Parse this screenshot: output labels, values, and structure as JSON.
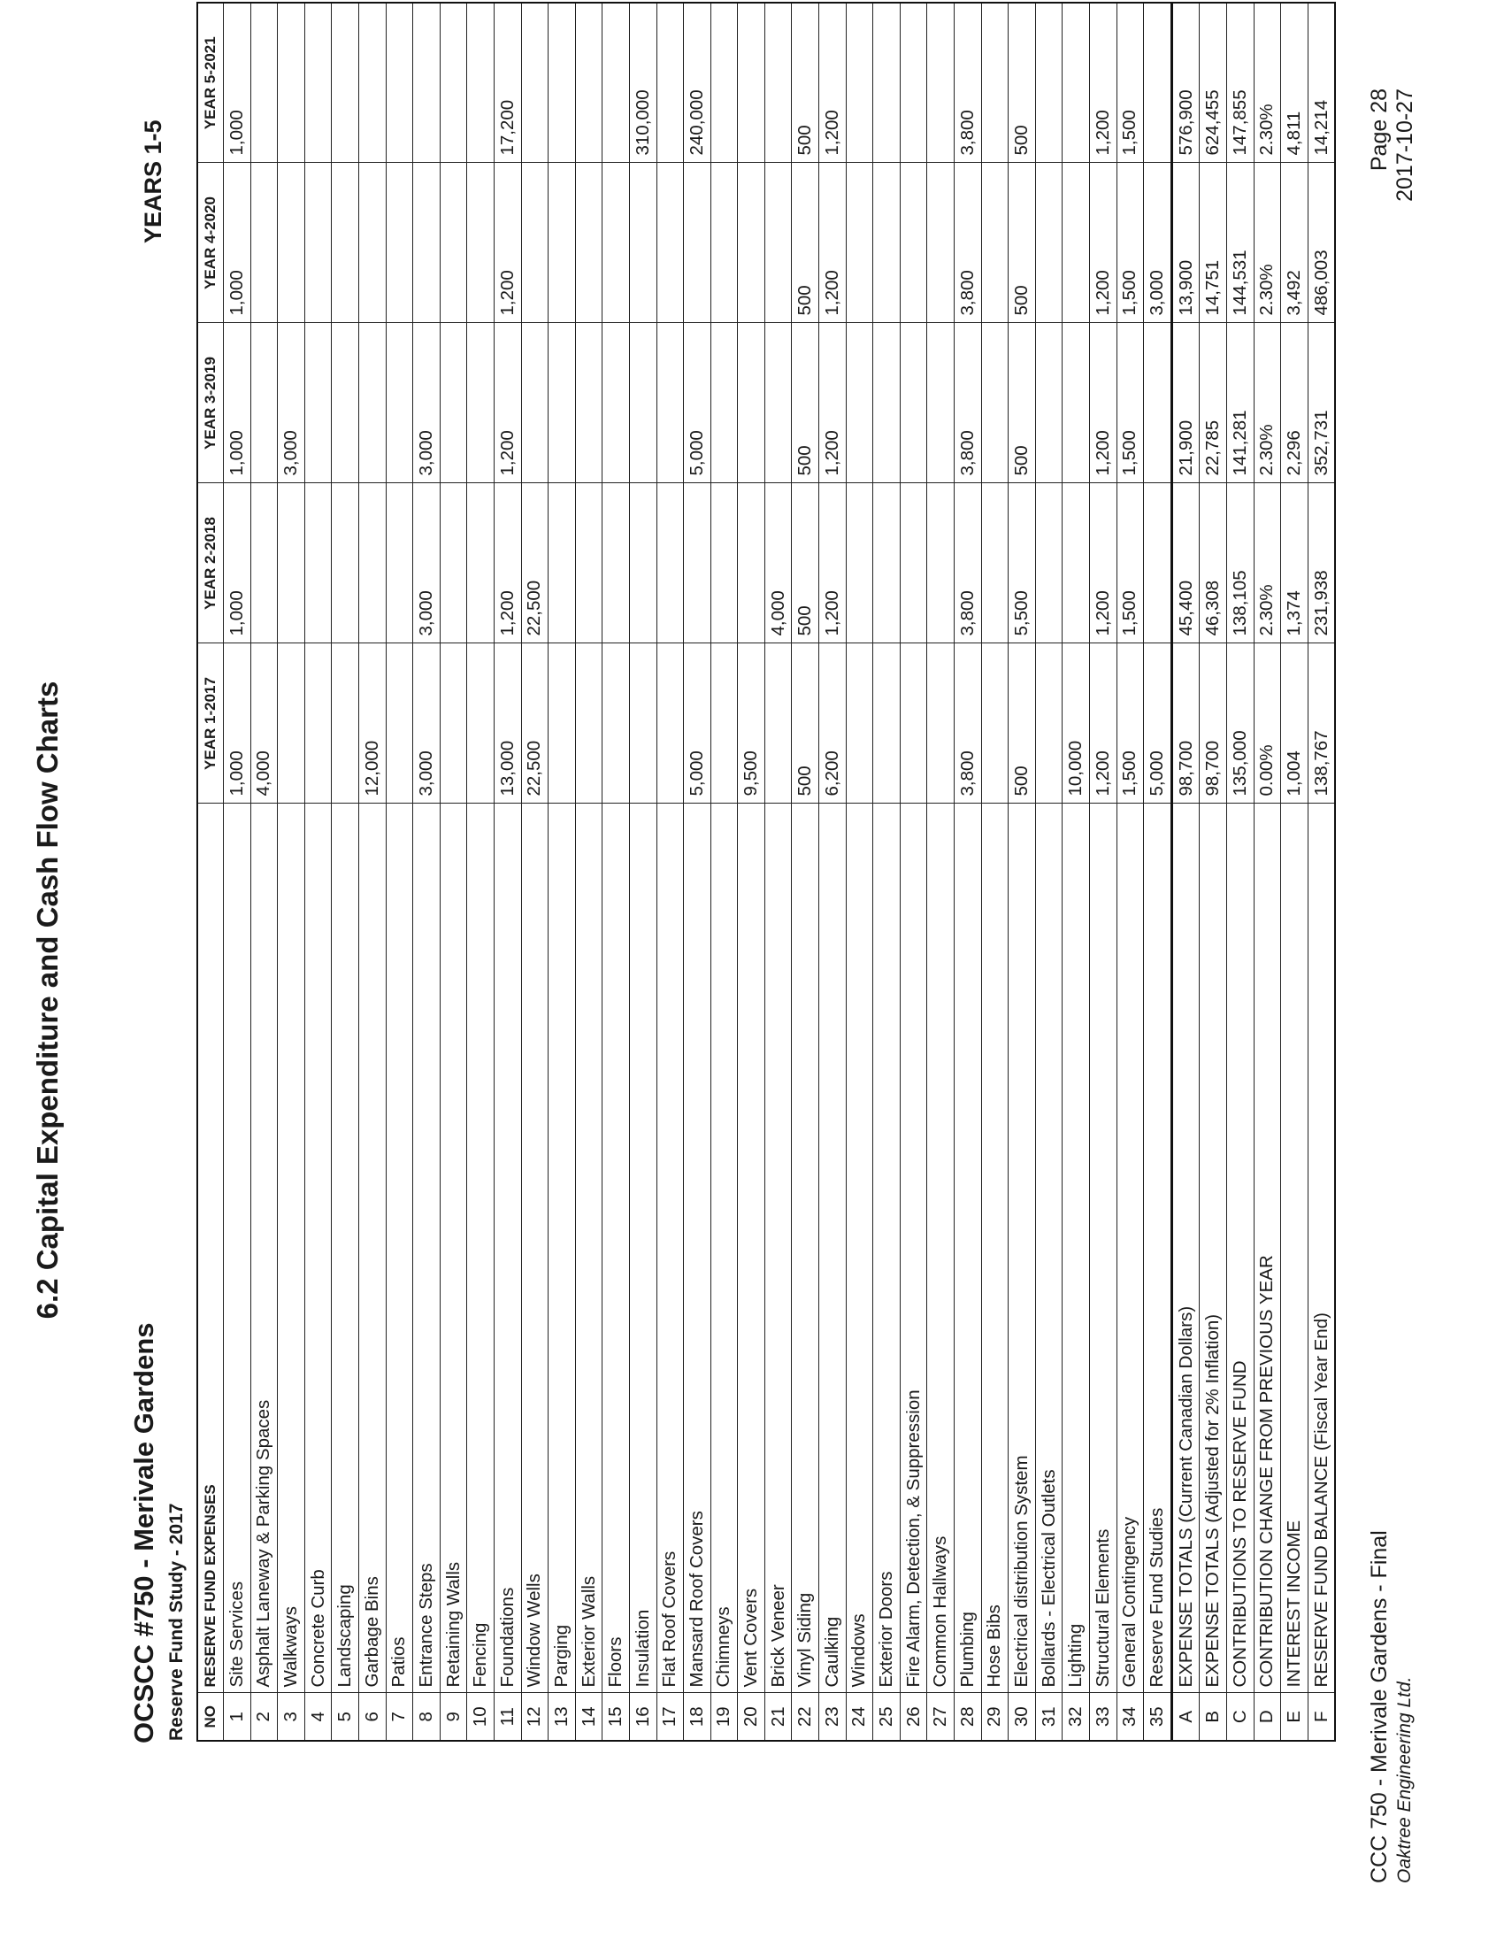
{
  "page_title": "6.2 Capital Expenditure and Cash Flow Charts",
  "org_title": "OCSCC #750 - Merivale Gardens",
  "study_title": "Reserve Fund Study - 2017",
  "years_label": "YEARS 1-5",
  "table": {
    "headers": {
      "no": "NO",
      "name": "RESERVE FUND EXPENSES",
      "years": [
        "YEAR 1-2017",
        "YEAR 2-2018",
        "YEAR 3-2019",
        "YEAR 4-2020",
        "YEAR 5-2021"
      ]
    },
    "rows": [
      {
        "no": "1",
        "name": "Site Services",
        "values": [
          "1,000",
          "1,000",
          "1,000",
          "1,000",
          "1,000"
        ]
      },
      {
        "no": "2",
        "name": "Asphalt Laneway & Parking Spaces",
        "values": [
          "4,000",
          "",
          "",
          "",
          ""
        ]
      },
      {
        "no": "3",
        "name": "Walkways",
        "values": [
          "",
          "",
          "3,000",
          "",
          ""
        ]
      },
      {
        "no": "4",
        "name": "Concrete Curb",
        "values": [
          "",
          "",
          "",
          "",
          ""
        ]
      },
      {
        "no": "5",
        "name": "Landscaping",
        "values": [
          "",
          "",
          "",
          "",
          ""
        ]
      },
      {
        "no": "6",
        "name": "Garbage Bins",
        "values": [
          "12,000",
          "",
          "",
          "",
          ""
        ]
      },
      {
        "no": "7",
        "name": "Patios",
        "values": [
          "",
          "",
          "",
          "",
          ""
        ]
      },
      {
        "no": "8",
        "name": "Entrance Steps",
        "values": [
          "3,000",
          "3,000",
          "3,000",
          "",
          ""
        ]
      },
      {
        "no": "9",
        "name": "Retaining Walls",
        "values": [
          "",
          "",
          "",
          "",
          ""
        ]
      },
      {
        "no": "10",
        "name": "Fencing",
        "values": [
          "",
          "",
          "",
          "",
          ""
        ]
      },
      {
        "no": "11",
        "name": "Foundations",
        "values": [
          "13,000",
          "1,200",
          "1,200",
          "1,200",
          "17,200"
        ]
      },
      {
        "no": "12",
        "name": "Window Wells",
        "values": [
          "22,500",
          "22,500",
          "",
          "",
          ""
        ]
      },
      {
        "no": "13",
        "name": "Parging",
        "values": [
          "",
          "",
          "",
          "",
          ""
        ]
      },
      {
        "no": "14",
        "name": "Exterior Walls",
        "values": [
          "",
          "",
          "",
          "",
          ""
        ]
      },
      {
        "no": "15",
        "name": "Floors",
        "values": [
          "",
          "",
          "",
          "",
          ""
        ]
      },
      {
        "no": "16",
        "name": "Insulation",
        "values": [
          "",
          "",
          "",
          "",
          "310,000"
        ]
      },
      {
        "no": "17",
        "name": "Flat Roof Covers",
        "values": [
          "",
          "",
          "",
          "",
          ""
        ]
      },
      {
        "no": "18",
        "name": "Mansard Roof Covers",
        "values": [
          "5,000",
          "",
          "5,000",
          "",
          "240,000"
        ]
      },
      {
        "no": "19",
        "name": "Chimneys",
        "values": [
          "",
          "",
          "",
          "",
          ""
        ]
      },
      {
        "no": "20",
        "name": "Vent Covers",
        "values": [
          "9,500",
          "",
          "",
          "",
          ""
        ]
      },
      {
        "no": "21",
        "name": "Brick Veneer",
        "values": [
          "",
          "4,000",
          "",
          "",
          ""
        ]
      },
      {
        "no": "22",
        "name": "Vinyl Siding",
        "values": [
          "500",
          "500",
          "500",
          "500",
          "500"
        ]
      },
      {
        "no": "23",
        "name": "Caulking",
        "values": [
          "6,200",
          "1,200",
          "1,200",
          "1,200",
          "1,200"
        ]
      },
      {
        "no": "24",
        "name": "Windows",
        "values": [
          "",
          "",
          "",
          "",
          ""
        ]
      },
      {
        "no": "25",
        "name": "Exterior Doors",
        "values": [
          "",
          "",
          "",
          "",
          ""
        ]
      },
      {
        "no": "26",
        "name": "Fire Alarm, Detection, & Suppression",
        "values": [
          "",
          "",
          "",
          "",
          ""
        ]
      },
      {
        "no": "27",
        "name": "Common Hallways",
        "values": [
          "",
          "",
          "",
          "",
          ""
        ]
      },
      {
        "no": "28",
        "name": "Plumbing",
        "values": [
          "3,800",
          "3,800",
          "3,800",
          "3,800",
          "3,800"
        ]
      },
      {
        "no": "29",
        "name": "Hose Bibs",
        "values": [
          "",
          "",
          "",
          "",
          ""
        ]
      },
      {
        "no": "30",
        "name": "Electrical distribution System",
        "values": [
          "500",
          "5,500",
          "500",
          "500",
          "500"
        ]
      },
      {
        "no": "31",
        "name": "Bollards - Electrical Outlets",
        "values": [
          "",
          "",
          "",
          "",
          ""
        ]
      },
      {
        "no": "32",
        "name": "Lighting",
        "values": [
          "10,000",
          "",
          "",
          "",
          ""
        ]
      },
      {
        "no": "33",
        "name": "Structural Elements",
        "values": [
          "1,200",
          "1,200",
          "1,200",
          "1,200",
          "1,200"
        ]
      },
      {
        "no": "34",
        "name": "General Contingency",
        "values": [
          "1,500",
          "1,500",
          "1,500",
          "1,500",
          "1,500"
        ]
      },
      {
        "no": "35",
        "name": "Reserve Fund Studies",
        "values": [
          "5,000",
          "",
          "",
          "3,000",
          ""
        ]
      }
    ],
    "summary": [
      {
        "no": "A",
        "name": "EXPENSE TOTALS (Current Canadian Dollars)",
        "values": [
          "98,700",
          "45,400",
          "21,900",
          "13,900",
          "576,900"
        ]
      },
      {
        "no": "B",
        "name": "EXPENSE TOTALS (Adjusted for 2% Inflation)",
        "values": [
          "98,700",
          "46,308",
          "22,785",
          "14,751",
          "624,455"
        ]
      },
      {
        "no": "C",
        "name": "CONTRIBUTIONS TO RESERVE FUND",
        "values": [
          "135,000",
          "138,105",
          "141,281",
          "144,531",
          "147,855"
        ]
      },
      {
        "no": "D",
        "name": "CONTRIBUTION CHANGE FROM PREVIOUS YEAR",
        "values": [
          "0.00%",
          "2.30%",
          "2.30%",
          "2.30%",
          "2.30%"
        ]
      },
      {
        "no": "E",
        "name": "INTEREST INCOME",
        "values": [
          "1,004",
          "1,374",
          "2,296",
          "3,492",
          "4,811"
        ]
      },
      {
        "no": "F",
        "name": "RESERVE FUND BALANCE (Fiscal Year End)",
        "values": [
          "138,767",
          "231,938",
          "352,731",
          "486,003",
          "14,214"
        ]
      }
    ]
  },
  "footer": {
    "left_line1": "CCC 750 - Merivale Gardens - Final",
    "left_line2": "Oaktree Engineering Ltd.",
    "page": "Page 28",
    "date": "2017-10-27"
  }
}
